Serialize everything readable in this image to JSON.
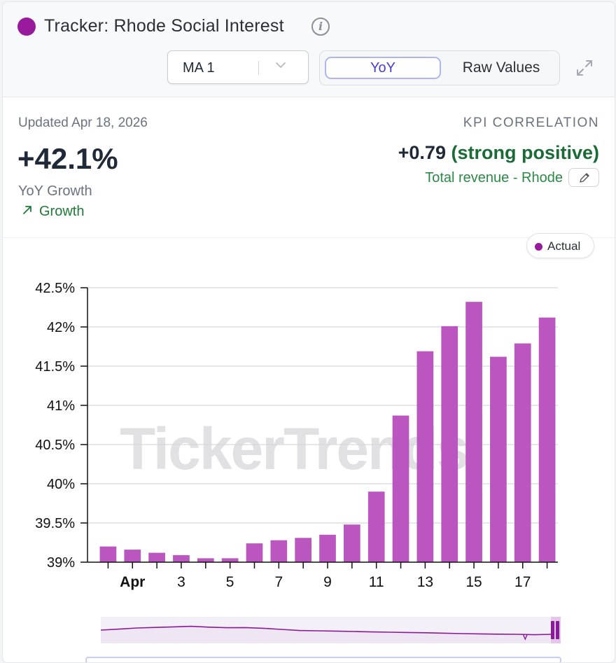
{
  "header": {
    "title": "Tracker: Rhode Social Interest",
    "brand_color": "#9a1a9e",
    "info_icon": "info-icon",
    "ma_select": {
      "value": "MA 1",
      "icon": "chevron-down-icon"
    },
    "view_toggle": {
      "options": [
        "YoY",
        "Raw Values"
      ],
      "selected": "YoY"
    },
    "expand_icon": "expand-icon"
  },
  "summary": {
    "updated": "Updated Apr 18, 2026",
    "value": "+42.1%",
    "value_label": "YoY Growth",
    "trend_label": "Growth",
    "trend_icon": "arrow-up-right-icon",
    "kpi_label": "KPI CORRELATION",
    "kpi_value": "+0.79",
    "kpi_desc": "(strong positive)",
    "kpi_metric": "Total revenue - Rhode",
    "edit_icon": "pencil-icon"
  },
  "legend": {
    "label": "Actual",
    "color": "#9a1a9e"
  },
  "watermark": "TickerTrends",
  "chart_data": {
    "type": "bar",
    "categories": [
      "Mar 31",
      "Apr 1",
      "Apr 2",
      "Apr 3",
      "Apr 4",
      "Apr 5",
      "Apr 6",
      "Apr 7",
      "Apr 8",
      "Apr 9",
      "Apr 10",
      "Apr 11",
      "Apr 12",
      "Apr 13",
      "Apr 14",
      "Apr 15",
      "Apr 16",
      "Apr 17",
      "Apr 18"
    ],
    "series": [
      {
        "name": "Actual",
        "color": "#bb55bf",
        "values": [
          39.2,
          39.16,
          39.12,
          39.09,
          39.05,
          39.05,
          39.24,
          39.28,
          39.31,
          39.35,
          39.48,
          39.9,
          40.87,
          41.69,
          42.01,
          42.32,
          41.62,
          41.79,
          42.12
        ]
      }
    ],
    "x_tick_labels": [
      {
        "label": "Apr",
        "index": 1,
        "bold": true
      },
      {
        "label": "3",
        "index": 3
      },
      {
        "label": "5",
        "index": 5
      },
      {
        "label": "7",
        "index": 7
      },
      {
        "label": "9",
        "index": 9
      },
      {
        "label": "11",
        "index": 11
      },
      {
        "label": "13",
        "index": 13
      },
      {
        "label": "15",
        "index": 15
      },
      {
        "label": "17",
        "index": 17
      }
    ],
    "y_ticks": [
      39,
      39.5,
      40,
      40.5,
      41,
      41.5,
      42,
      42.5
    ],
    "y_tick_labels": [
      "39%",
      "39.5%",
      "40%",
      "40.5%",
      "41%",
      "41.5%",
      "42%",
      "42.5%"
    ],
    "ylim": [
      39,
      42.5
    ],
    "grid": true,
    "legend": "top-right",
    "navigator": {
      "values": [
        0.55,
        0.62,
        0.7,
        0.74,
        0.78,
        0.82,
        0.76,
        0.72,
        0.73,
        0.68,
        0.6,
        0.52,
        0.5,
        0.48,
        0.45,
        0.42,
        0.4,
        0.38,
        0.36,
        0.33,
        0.3,
        0.28,
        0.26,
        0.25,
        0.22,
        0.25
      ],
      "dip_fraction": 0.94,
      "line_color": "#8a1a9a"
    }
  }
}
